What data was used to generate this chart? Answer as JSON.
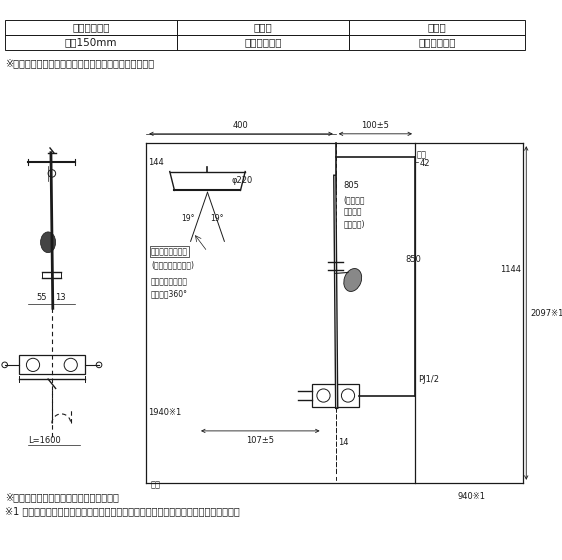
{
  "table_row1": [
    "高温出湯規制",
    "逆止弁",
    "メタル"
  ],
  "table_row2": [
    "心々150mm",
    "ストレート脚",
    "スパウトなし"
  ],
  "note1": "※ハンドシャワーのシャワーホースは樹脂ホースです。",
  "note2": "※オーバーヘッドシャワーは固定式です。",
  "note3": "※1 参考寸法です。使用者の身長・天井高さなどを考慮のうえ、取り付けてください。",
  "bg_color": "#ffffff",
  "line_color": "#1a1a1a",
  "dim_color": "#1a1a1a"
}
